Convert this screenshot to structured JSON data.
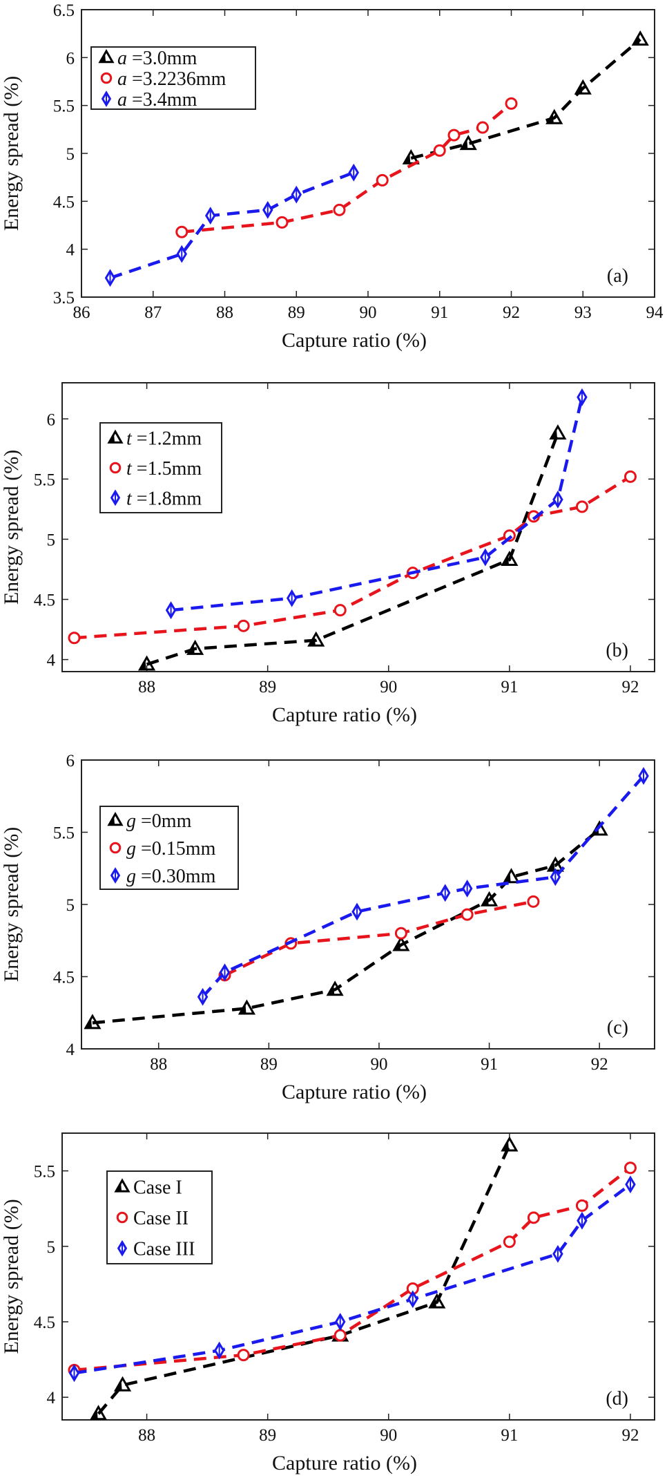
{
  "colors": {
    "black": "#000000",
    "red": "#e8141c",
    "blue": "#1a1aef"
  },
  "chart_data": [
    {
      "type": "line",
      "xlabel": "Capture ratio (%)",
      "ylabel": "Energy spread (%)",
      "panel_label": "(a)",
      "xlim": [
        86,
        94
      ],
      "ylim": [
        3.5,
        6.5
      ],
      "xticks": [
        86,
        87,
        88,
        89,
        90,
        91,
        92,
        93,
        94
      ],
      "xtick_labels": [
        "86",
        "87",
        "88",
        "89",
        "90",
        "91",
        "92",
        "93",
        "94"
      ],
      "yticks": [
        3.5,
        4,
        4.5,
        5,
        5.5,
        6,
        6.5
      ],
      "ytick_labels": [
        "3.5",
        "4",
        "4.5",
        "5",
        "5.5",
        "6",
        "6.5"
      ],
      "legend_position": "top-left",
      "grid": false,
      "series": [
        {
          "var": "a",
          "rest": " =3.0mm",
          "color": "#000000",
          "marker": "triangle",
          "x": [
            90.6,
            91.4,
            92.6,
            93.0,
            93.8
          ],
          "y": [
            4.95,
            5.1,
            5.37,
            5.68,
            6.19
          ]
        },
        {
          "var": "a",
          "rest": " =3.2236mm",
          "color": "#e8141c",
          "marker": "circle",
          "x": [
            87.4,
            88.8,
            89.6,
            90.2,
            91.0,
            91.2,
            91.6,
            92.0
          ],
          "y": [
            4.18,
            4.28,
            4.41,
            4.72,
            5.03,
            5.19,
            5.27,
            5.52
          ]
        },
        {
          "var": "a",
          "rest": " =3.4mm",
          "color": "#1a1aef",
          "marker": "diamond",
          "x": [
            86.4,
            87.4,
            87.8,
            88.6,
            89.0,
            89.8
          ],
          "y": [
            3.7,
            3.95,
            4.35,
            4.41,
            4.57,
            4.8
          ]
        }
      ]
    },
    {
      "type": "line",
      "xlabel": "Capture ratio (%)",
      "ylabel": "Energy spread (%)",
      "panel_label": "(b)",
      "xlim": [
        87.3,
        92.2
      ],
      "ylim": [
        3.9,
        6.3
      ],
      "xticks": [
        88,
        89,
        90,
        91,
        92
      ],
      "xtick_labels": [
        "88",
        "89",
        "90",
        "91",
        "92"
      ],
      "yticks": [
        4,
        4.5,
        5,
        5.5,
        6
      ],
      "ytick_labels": [
        "4",
        "4.5",
        "5",
        "5.5",
        "6"
      ],
      "legend_position": "top-left",
      "grid": false,
      "series": [
        {
          "var": "t",
          "rest": " =1.2mm",
          "color": "#000000",
          "marker": "triangle",
          "x": [
            88.0,
            88.4,
            89.4,
            91.0,
            91.4
          ],
          "y": [
            3.96,
            4.09,
            4.16,
            4.83,
            5.88
          ]
        },
        {
          "var": "t",
          "rest": " =1.5mm",
          "color": "#e8141c",
          "marker": "circle",
          "x": [
            87.4,
            88.8,
            89.6,
            90.2,
            91.0,
            91.2,
            91.6,
            92.0
          ],
          "y": [
            4.18,
            4.28,
            4.41,
            4.72,
            5.03,
            5.19,
            5.27,
            5.52
          ]
        },
        {
          "var": "t",
          "rest": " =1.8mm",
          "color": "#1a1aef",
          "marker": "diamond",
          "x": [
            88.2,
            89.2,
            90.8,
            91.4,
            91.6
          ],
          "y": [
            4.41,
            4.51,
            4.85,
            5.33,
            6.18
          ]
        }
      ]
    },
    {
      "type": "line",
      "xlabel": "Capture ratio (%)",
      "ylabel": "Energy spread (%)",
      "panel_label": "(c)",
      "xlim": [
        87.3,
        92.5
      ],
      "ylim": [
        4,
        6
      ],
      "xticks": [
        88,
        89,
        90,
        91,
        92
      ],
      "xtick_labels": [
        "88",
        "89",
        "90",
        "91",
        "92"
      ],
      "yticks": [
        4,
        4.5,
        5,
        5.5,
        6
      ],
      "ytick_labels": [
        "4",
        "4.5",
        "5",
        "5.5",
        "6"
      ],
      "legend_position": "top-left",
      "grid": false,
      "series": [
        {
          "var": "g",
          "rest": " =0mm",
          "color": "#000000",
          "marker": "triangle",
          "x": [
            87.4,
            88.8,
            89.6,
            90.2,
            91.0,
            91.2,
            91.6,
            92.0
          ],
          "y": [
            4.18,
            4.28,
            4.41,
            4.72,
            5.03,
            5.19,
            5.27,
            5.52
          ]
        },
        {
          "var": "g",
          "rest": " =0.15mm",
          "color": "#e8141c",
          "marker": "circle",
          "x": [
            88.6,
            89.2,
            90.2,
            90.8,
            91.4
          ],
          "y": [
            4.51,
            4.73,
            4.8,
            4.93,
            5.02
          ]
        },
        {
          "var": "g",
          "rest": " =0.30mm",
          "color": "#1a1aef",
          "marker": "diamond",
          "x": [
            88.4,
            88.6,
            89.8,
            90.6,
            90.8,
            91.6,
            92.4
          ],
          "y": [
            4.36,
            4.53,
            4.95,
            5.08,
            5.11,
            5.19,
            5.89
          ]
        }
      ]
    },
    {
      "type": "line",
      "xlabel": "Capture ratio (%)",
      "ylabel": "Energy spread (%)",
      "panel_label": "(d)",
      "xlim": [
        87.3,
        92.2
      ],
      "ylim": [
        3.85,
        5.75
      ],
      "xticks": [
        88,
        89,
        90,
        91,
        92
      ],
      "xtick_labels": [
        "88",
        "89",
        "90",
        "91",
        "92"
      ],
      "yticks": [
        4,
        4.5,
        5,
        5.5
      ],
      "ytick_labels": [
        "4",
        "4.5",
        "5",
        "5.5"
      ],
      "legend_position": "top-left",
      "grid": false,
      "series": [
        {
          "var": "",
          "rest": "Case I",
          "color": "#000000",
          "marker": "triangle",
          "x": [
            87.6,
            87.8,
            89.6,
            90.4,
            91.0
          ],
          "y": [
            3.89,
            4.08,
            4.41,
            4.63,
            5.67
          ]
        },
        {
          "var": "",
          "rest": "Case II",
          "color": "#e8141c",
          "marker": "circle",
          "x": [
            87.4,
            88.8,
            89.6,
            90.2,
            91.0,
            91.2,
            91.6,
            92.0
          ],
          "y": [
            4.18,
            4.28,
            4.41,
            4.72,
            5.03,
            5.19,
            5.27,
            5.52
          ]
        },
        {
          "var": "",
          "rest": "Case III",
          "color": "#1a1aef",
          "marker": "diamond",
          "x": [
            87.4,
            88.6,
            89.6,
            90.2,
            91.4,
            91.6,
            92.0
          ],
          "y": [
            4.16,
            4.31,
            4.5,
            4.65,
            4.95,
            5.17,
            5.41
          ]
        }
      ]
    }
  ]
}
